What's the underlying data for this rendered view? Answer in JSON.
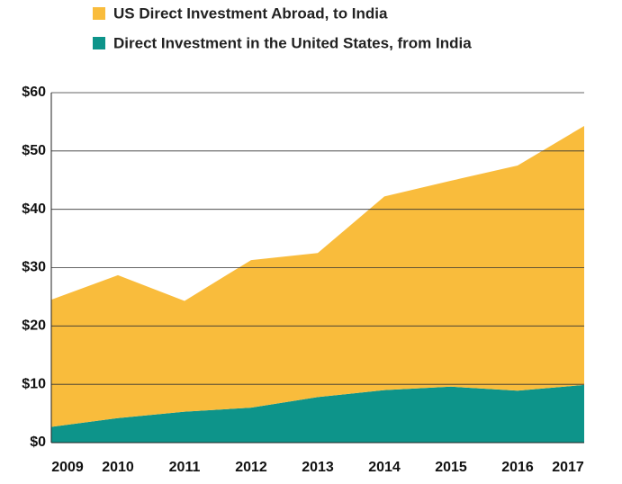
{
  "chart_data": {
    "type": "area",
    "stacked": true,
    "categories": [
      "2009",
      "2010",
      "2011",
      "2012",
      "2013",
      "2014",
      "2015",
      "2016",
      "2017"
    ],
    "series": [
      {
        "name": "US Direct Investment Abroad, to India",
        "color": "#f9bc3c",
        "values": [
          21.8,
          24.5,
          19.0,
          25.3,
          24.7,
          33.2,
          35.3,
          38.6,
          44.4
        ]
      },
      {
        "name": "Direct Investment in the United States, from India",
        "color": "#0d948a",
        "values": [
          2.7,
          4.2,
          5.3,
          6.0,
          7.8,
          9.0,
          9.6,
          8.9,
          9.9
        ]
      }
    ],
    "ylim": [
      0,
      60
    ],
    "yticks": [
      {
        "value": 0,
        "label": "$0"
      },
      {
        "value": 10,
        "label": "$10"
      },
      {
        "value": 20,
        "label": "$20"
      },
      {
        "value": 30,
        "label": "$30"
      },
      {
        "value": 40,
        "label": "$40"
      },
      {
        "value": 50,
        "label": "$50"
      },
      {
        "value": 60,
        "label": "$60"
      }
    ],
    "grid": true,
    "legend": "top"
  }
}
